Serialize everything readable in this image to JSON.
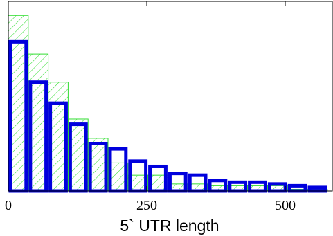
{
  "chart_data": {
    "type": "bar",
    "title": "",
    "xlabel": "5` UTR length",
    "ylabel": "",
    "xlim": [
      0,
      585
    ],
    "xticks": [
      0,
      250,
      500
    ],
    "xtick_labels": [
      "0",
      "250",
      "500"
    ],
    "grid": false,
    "bin_width": 36,
    "bin_starts": [
      0,
      36,
      72,
      108,
      144,
      180,
      216,
      252,
      288,
      324,
      360,
      396,
      432,
      468,
      504,
      540
    ],
    "series": [
      {
        "style": "hatched",
        "color": "#33dd33",
        "values": [
          100,
          78,
          62,
          41,
          30,
          16,
          9,
          9,
          4,
          4,
          3,
          3,
          3,
          3,
          1,
          1
        ]
      },
      {
        "style": "outline",
        "color": "#0000dd",
        "values": [
          85,
          62,
          50,
          38,
          27,
          24,
          17,
          14,
          10,
          9,
          6,
          5,
          5,
          4,
          3,
          2
        ]
      }
    ]
  }
}
